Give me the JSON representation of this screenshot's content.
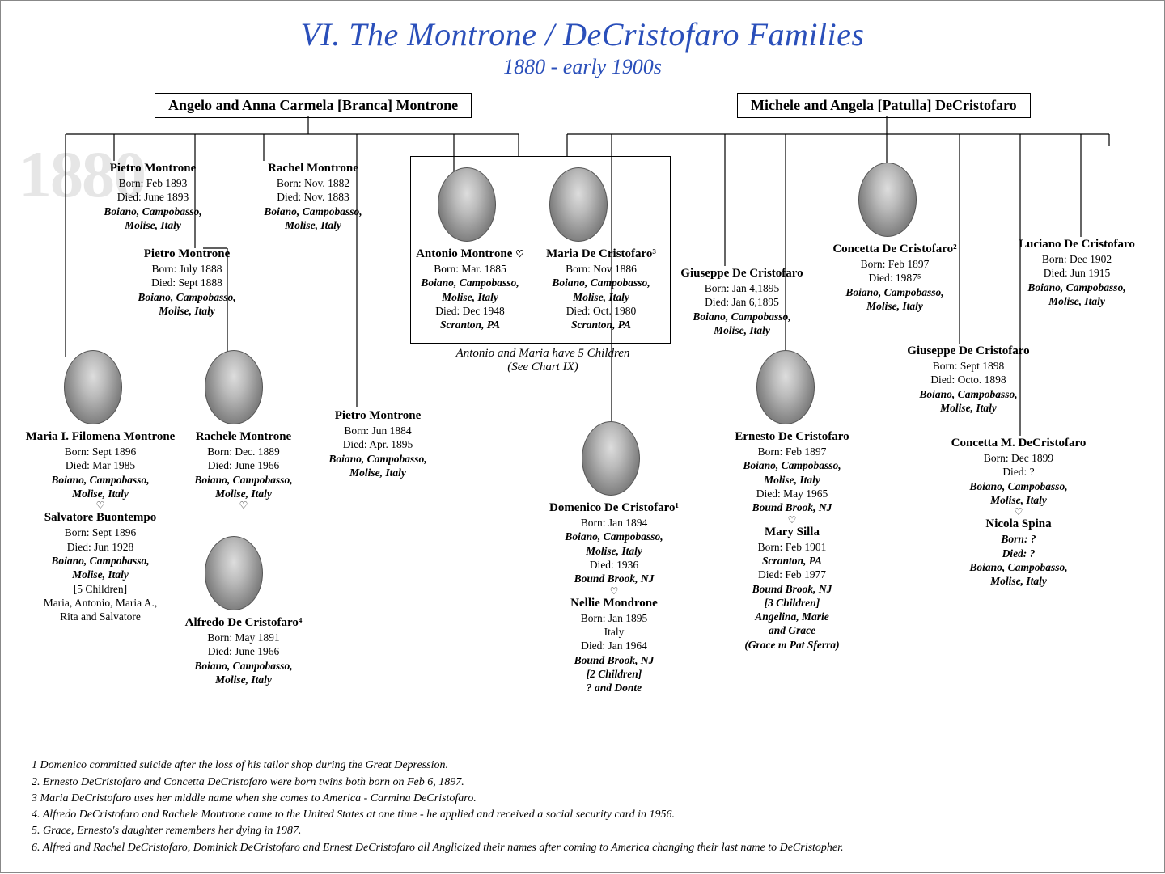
{
  "title": "VI. The Montrone / DeCristofaro Families",
  "subtitle": "1880 - early 1900s",
  "watermark": "1880",
  "parents": {
    "left": "Angelo and Anna Carmela [Branca] Montrone",
    "right": "Michele and Angela [Patulla] DeCristofaro"
  },
  "coupleNote": "Antonio and Maria have 5 Children\n(See Chart IX)",
  "people": {
    "pietro1": {
      "name": "Pietro Montrone",
      "born": "Born: Feb 1893",
      "died": "Died: June 1893",
      "place": "Boiano, Campobasso,\nMolise, Italy"
    },
    "pietro2": {
      "name": "Pietro Montrone",
      "born": "Born: July 1888",
      "died": "Died: Sept 1888",
      "place": "Boiano, Campobasso,\nMolise, Italy"
    },
    "rachel": {
      "name": "Rachel Montrone",
      "born": "Born: Nov. 1882",
      "died": "Died: Nov. 1883",
      "place": "Boiano, Campobasso,\nMolise, Italy"
    },
    "antonio": {
      "name": "Antonio Montrone",
      "born": "Born: Mar. 1885",
      "place": "Boiano, Campobasso,\nMolise, Italy",
      "died": "Died: Dec 1948",
      "place2": "Scranton, PA"
    },
    "mariaDC": {
      "name": "Maria De Cristofaro³",
      "born": "Born: Nov 1886",
      "place": "Boiano, Campobasso,\nMolise, Italy",
      "died": "Died: Oct. 1980",
      "place2": "Scranton, PA"
    },
    "mariaF": {
      "name": "Maria I. Filomena Montrone",
      "born": "Born: Sept 1896",
      "died": "Died: Mar 1985",
      "place": "Boiano, Campobasso,\nMolise, Italy",
      "spouse": "Salvatore Buontempo",
      "sborn": "Born: Sept 1896",
      "sdied": "Died: Jun 1928",
      "splace": "Boiano, Campobasso,\nMolise, Italy",
      "children": "[5 Children]\nMaria, Antonio, Maria A.,\nRita and Salvatore"
    },
    "rachele": {
      "name": "Rachele Montrone",
      "born": "Born: Dec. 1889",
      "died": "Died: June 1966",
      "place": "Boiano, Campobasso,\nMolise, Italy",
      "spouse": "Alfredo De Cristofaro⁴",
      "sborn": "Born: May 1891",
      "sdied": "Died: June 1966",
      "splace": "Boiano, Campobasso,\nMolise, Italy"
    },
    "pietro3": {
      "name": "Pietro Montrone",
      "born": "Born: Jun 1884",
      "died": "Died: Apr. 1895",
      "place": "Boiano, Campobasso,\nMolise, Italy"
    },
    "domenico": {
      "name": "Domenico De Cristofaro¹",
      "born": "Born: Jan 1894",
      "place": "Boiano, Campobasso,\nMolise, Italy",
      "died": "Died:  1936",
      "place2": "Bound Brook, NJ",
      "spouse": "Nellie Mondrone",
      "sborn": "Born: Jan 1895",
      "splace": "Italy",
      "sdied": "Died: Jan 1964",
      "splace2": "Bound Brook, NJ",
      "children": "[2 Children]\n? and Donte"
    },
    "giuseppe1": {
      "name": "Giuseppe De Cristofaro",
      "born": "Born: Jan  4,1895",
      "died": "Died: Jan 6,1895",
      "place": "Boiano, Campobasso,\nMolise, Italy"
    },
    "ernesto": {
      "name": "Ernesto De Cristofaro",
      "born": "Born: Feb 1897",
      "place": "Boiano, Campobasso,\nMolise, Italy",
      "died": "Died: May 1965",
      "place2": "Bound Brook, NJ",
      "spouse": "Mary Silla",
      "sborn": "Born: Feb 1901",
      "splace": "Scranton, PA",
      "sdied": "Died: Feb 1977",
      "splace2": "Bound Brook, NJ",
      "children": "[3 Children]\nAngelina, Marie\nand Grace\n(Grace m Pat Sferra)"
    },
    "concetta": {
      "name": "Concetta De Cristofaro²",
      "born": "Born: Feb 1897",
      "died": "Died: 1987⁵",
      "place": "Boiano, Campobasso,\nMolise, Italy"
    },
    "luciano": {
      "name": "Luciano De Cristofaro",
      "born": "Born: Dec 1902",
      "died": "Died: Jun 1915",
      "place": "Boiano, Campobasso,\nMolise, Italy"
    },
    "giuseppe2": {
      "name": "Giuseppe De Cristofaro",
      "born": "Born: Sept 1898",
      "died": "Died: Octo. 1898",
      "place": "Boiano, Campobasso,\nMolise, Italy"
    },
    "concettaM": {
      "name": "Concetta M. DeCristofaro",
      "born": "Born: Dec 1899",
      "died": "Died: ?",
      "place": "Boiano, Campobasso,\nMolise, Italy",
      "spouse": "Nicola Spina",
      "sborn": "Born: ?",
      "sdied": "Died: ?",
      "splace": "Boiano, Campobasso,\nMolise, Italy"
    }
  },
  "footnotes": [
    "1  Domenico committed suicide after the loss of his tailor shop during the Great Depression.",
    "2. Ernesto DeCristofaro and Concetta DeCristofaro were born twins both born on Feb 6, 1897.",
    "3  Maria DeCristofaro uses her middle name when she comes to America - Carmina DeCristofaro.",
    "4.  Alfredo DeCristofaro and Rachele Montrone came to the United States at one time - he applied and received a social security card in 1956.",
    "5.  Grace, Ernesto's daughter remembers her dying in 1987.",
    "6.  Alfred and Rachel DeCristofaro, Dominick DeCristofaro and Ernest DeCristofaro all Anglicized their names after coming to America changing their last name to DeCristopher."
  ]
}
